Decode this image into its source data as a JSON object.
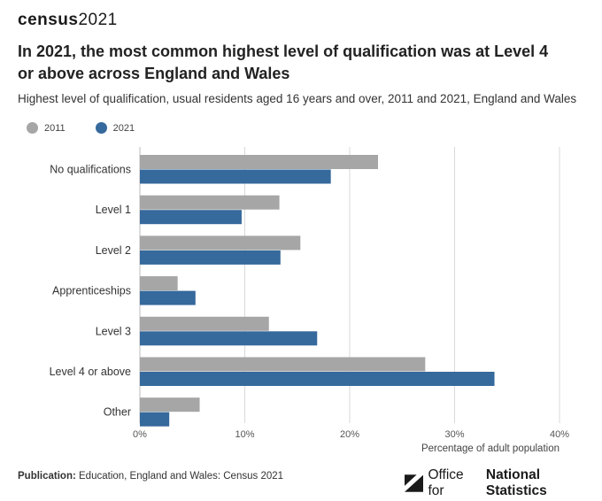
{
  "header": {
    "brand": "census",
    "year": "2021",
    "title": "In 2021, the most common highest level of qualification was at Level 4 or above across England and Wales",
    "subtitle": "Highest level of qualification, usual residents aged 16 years and over, 2011 and 2021, England and Wales"
  },
  "colors": {
    "2011": "#a6a6a6",
    "2021": "#36699c",
    "grid": "#d9d9d9"
  },
  "chart_data": {
    "type": "bar",
    "orientation": "horizontal",
    "categories": [
      "No qualifications",
      "Level 1",
      "Level 2",
      "Apprenticeships",
      "Level 3",
      "Level 4 or above",
      "Other"
    ],
    "series": [
      {
        "name": "2011",
        "values": [
          22.7,
          13.3,
          15.3,
          3.6,
          12.3,
          27.2,
          5.7
        ]
      },
      {
        "name": "2021",
        "values": [
          18.2,
          9.7,
          13.4,
          5.3,
          16.9,
          33.8,
          2.8
        ]
      }
    ],
    "xlabel": "Percentage of adult population",
    "ylabel": "",
    "xlim": [
      0,
      40
    ],
    "xticks": [
      0,
      10,
      20,
      30,
      40
    ],
    "xtick_labels": [
      "0%",
      "10%",
      "20%",
      "30%",
      "40%"
    ],
    "grid": true,
    "legend_position": "top-left"
  },
  "footer": {
    "publication_label": "Publication:",
    "publication_text": "Education, England and Wales: Census 2021",
    "org_prefix": "Office for",
    "org_bold": "National Statistics"
  }
}
